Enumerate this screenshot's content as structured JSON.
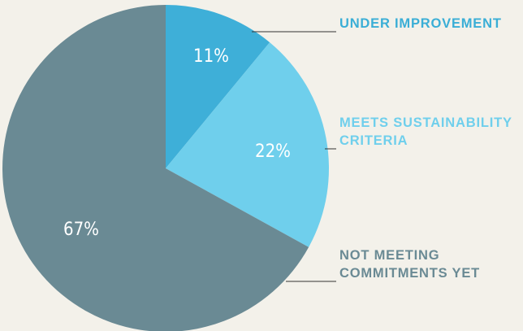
{
  "chart_data": {
    "type": "pie",
    "categories": [
      "UNDER IMPROVEMENT",
      "MEETS SUSTAINABILITY CRITERIA",
      "NOT MEETING COMMITMENTS YET"
    ],
    "values": [
      11,
      22,
      67
    ],
    "value_labels": [
      "11%",
      "22%",
      "67%"
    ],
    "colors": [
      "#3eafd8",
      "#6fcfec",
      "#6a8a94"
    ],
    "label_colors": [
      "#3aaed6",
      "#6fcfec",
      "#6a8a94"
    ]
  }
}
